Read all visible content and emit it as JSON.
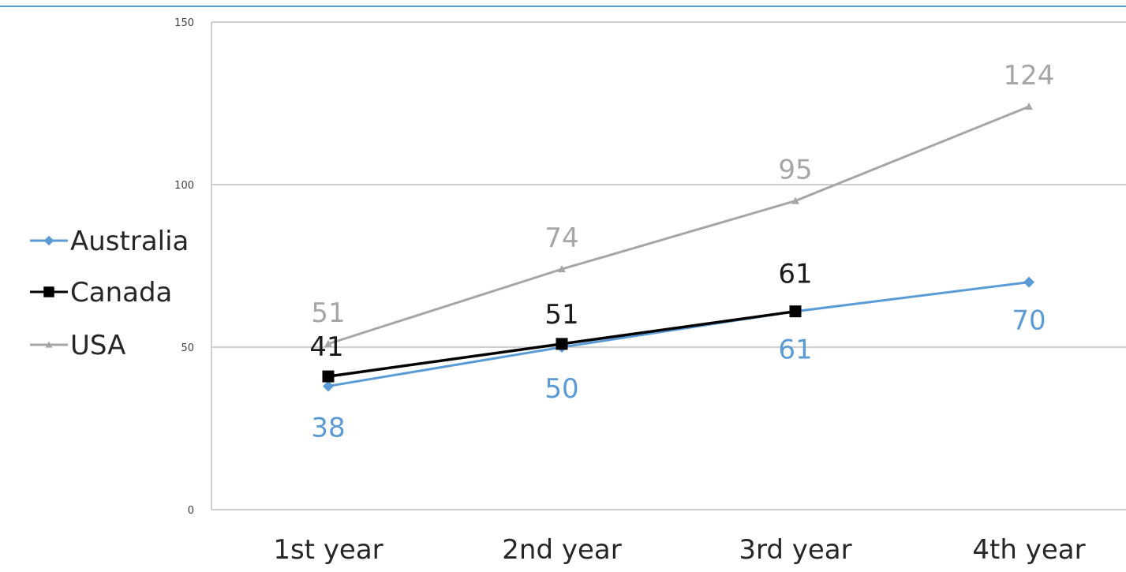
{
  "chart_data": {
    "type": "line",
    "categories": [
      "1st year",
      "2nd year",
      "3rd year",
      "4th year"
    ],
    "ylim": [
      0,
      150
    ],
    "yticks": [
      0,
      50,
      100,
      150
    ],
    "grid": true,
    "legend_position": "left",
    "series": [
      {
        "name": "Australia",
        "values": [
          38,
          50,
          61,
          70
        ],
        "color": "#5b9bd5",
        "marker": "diamond"
      },
      {
        "name": "Canada",
        "values": [
          41,
          51,
          61,
          null
        ],
        "color": "#000000",
        "marker": "square"
      },
      {
        "name": "USA",
        "values": [
          51,
          74,
          95,
          124
        ],
        "color": "#a6a6a6",
        "marker": "triangle"
      }
    ],
    "data_label_colors": {
      "Australia": "#5b9bd5",
      "Canada": "#1a1a1a",
      "USA": "#a6a6a6"
    }
  }
}
